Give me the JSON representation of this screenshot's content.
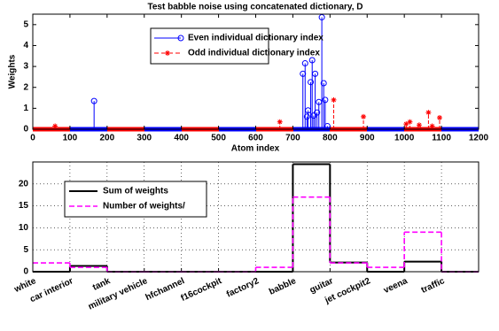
{
  "chart_data": [
    {
      "type": "stem",
      "title": "Test babble noise using concatenated dictionary, D",
      "xlabel": "Atom index",
      "ylabel": "Weights",
      "xlim": [
        0,
        1200
      ],
      "xticks": [
        0,
        100,
        200,
        300,
        400,
        500,
        600,
        700,
        800,
        900,
        1000,
        1100,
        1200
      ],
      "ylim": [
        0,
        5.5
      ],
      "yticks": [
        0,
        1,
        2,
        3,
        4,
        5
      ],
      "grid": false,
      "legend": "upper left",
      "series": [
        {
          "name": "Even individual dictionary index",
          "color": "#0000ff",
          "marker": "circle",
          "line": "solid",
          "x": [
            165,
            727,
            733,
            738,
            741,
            748,
            752,
            756,
            760,
            765,
            770,
            778,
            783,
            787,
            793
          ],
          "values": [
            1.35,
            2.65,
            3.15,
            0.6,
            0.9,
            2.25,
            3.3,
            0.65,
            2.65,
            0.8,
            1.3,
            5.35,
            2.2,
            1.4,
            0.15
          ]
        },
        {
          "name": "Odd individual dictionary index",
          "color": "#ff0000",
          "marker": "star",
          "line": "dashed",
          "x": [
            60,
            665,
            810,
            890,
            1005,
            1015,
            1040,
            1065,
            1075,
            1095
          ],
          "values": [
            0.15,
            0.35,
            1.4,
            0.6,
            0.25,
            0.35,
            0.2,
            0.8,
            0.15,
            0.55
          ]
        }
      ]
    },
    {
      "type": "stairs",
      "categories": [
        "white",
        "car interior",
        "tank",
        "military vehicle",
        "hfchannel",
        "f16cockpit",
        "factory2",
        "babble",
        "guitar",
        "jet cockpit2",
        "veena",
        "traffic"
      ],
      "ylim": [
        0,
        25
      ],
      "yticks": [
        0,
        5,
        10,
        15,
        20
      ],
      "grid": true,
      "legend": "upper left",
      "series": [
        {
          "name": "Sum of weights",
          "color": "#000000",
          "line": "solid",
          "values": [
            0,
            1.3,
            0,
            0,
            0,
            0,
            0,
            24.5,
            2.1,
            0,
            2.3,
            0
          ]
        },
        {
          "name": "Number of weights/",
          "color": "#ff00ff",
          "line": "dashed",
          "values": [
            2,
            1,
            0,
            0,
            0,
            0,
            1,
            17,
            2,
            1,
            9,
            0
          ]
        }
      ]
    }
  ]
}
